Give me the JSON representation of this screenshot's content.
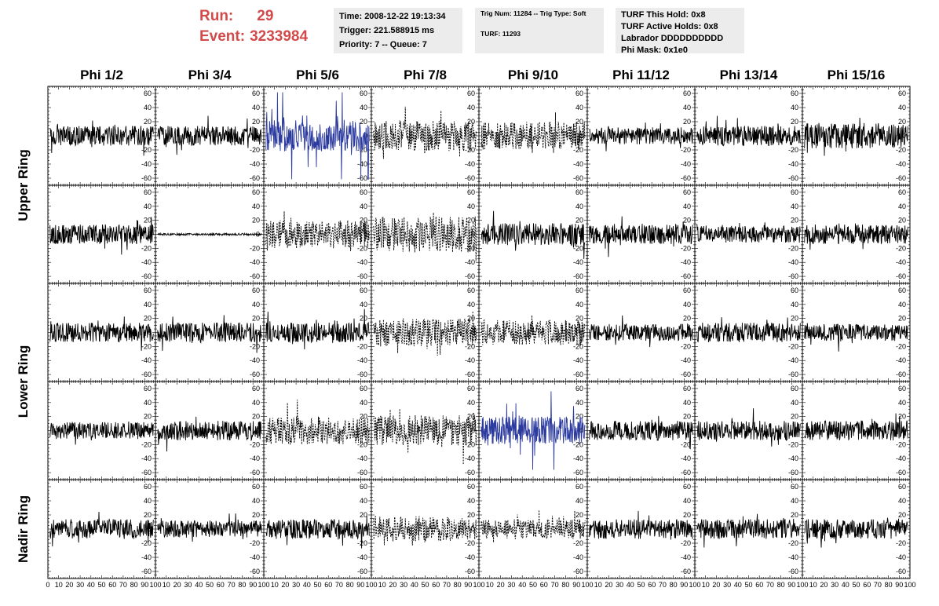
{
  "header": {
    "run_label": "Run:",
    "run_value": "29",
    "event_label": "Event:",
    "event_value": "3233984",
    "accent_color": "#d24a4a"
  },
  "info_boxes": {
    "time": "Time: 2008-12-22 19:13:34",
    "trigger": "Trigger: 221.588915 ms",
    "priority": "Priority: 7 -- Queue: 7",
    "trig_num": "Trig Num: 11284 -- Trig Type: Soft",
    "turf": "TURF: 11293",
    "turf_this_hold": "TURF This Hold: 0x8",
    "turf_active_holds": "TURF Active Holds: 0x8",
    "labrador": "Labrador DDDDDDDDDD",
    "phi_mask": "Phi Mask: 0x1e0"
  },
  "chart_data": {
    "type": "line",
    "description": "grid of waveform traces, 4 rings x 8 phi sectors",
    "columns": [
      "Phi 1/2",
      "Phi 3/4",
      "Phi 5/6",
      "Phi 7/8",
      "Phi 9/10",
      "Phi 11/12",
      "Phi 13/14",
      "Phi 15/16"
    ],
    "rows": [
      "Upper Ring",
      "Upper Ring",
      "Lower Ring",
      "Lower Ring",
      "Nadir Ring"
    ],
    "row_labels": [
      {
        "text": "Upper Ring",
        "span_rows": [
          0,
          1
        ]
      },
      {
        "text": "Lower Ring",
        "span_rows": [
          2,
          3
        ]
      },
      {
        "text": "Nadir Ring",
        "span_rows": [
          4,
          4
        ]
      }
    ],
    "xlim": [
      0,
      100
    ],
    "ylim": [
      -70,
      70
    ],
    "x_ticks": [
      0,
      10,
      20,
      30,
      40,
      50,
      60,
      70,
      80,
      90,
      100
    ],
    "y_ticks": [
      60,
      40,
      20,
      0,
      -20,
      -40,
      -60
    ],
    "x_tick_labels_row": [
      "0",
      "10",
      "20",
      "30",
      "40",
      "50",
      "60",
      "70",
      "80",
      "90",
      "100"
    ],
    "channel_style": [
      [
        "solid",
        "solid",
        "blue",
        "dashed",
        "dashed",
        "solid",
        "solid",
        "solid"
      ],
      [
        "solid",
        "flat",
        "dashed",
        "dashed",
        "solid",
        "solid",
        "solid",
        "solid"
      ],
      [
        "solid",
        "solid",
        "solid",
        "dashed",
        "dashed",
        "solid",
        "solid",
        "solid"
      ],
      [
        "solid",
        "solid",
        "dashed",
        "dashed",
        "blue",
        "solid",
        "solid",
        "solid"
      ],
      [
        "solid",
        "solid",
        "solid",
        "dashed",
        "dashed",
        "solid",
        "solid",
        "solid"
      ]
    ],
    "amplitude": [
      [
        14,
        14,
        22,
        22,
        20,
        12,
        14,
        18
      ],
      [
        14,
        2,
        20,
        26,
        16,
        14,
        12,
        14
      ],
      [
        14,
        14,
        14,
        20,
        18,
        12,
        14,
        12
      ],
      [
        12,
        14,
        20,
        22,
        20,
        14,
        14,
        14
      ],
      [
        14,
        12,
        14,
        18,
        14,
        14,
        14,
        14
      ]
    ],
    "colors": {
      "solid": "#000000",
      "dashed": "#000000",
      "blue": "#2b3a9e",
      "flat": "#000000"
    }
  }
}
